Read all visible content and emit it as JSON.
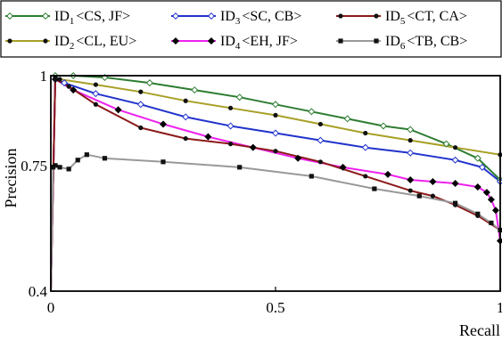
{
  "chart_data": {
    "type": "line",
    "title": "",
    "xlabel": "Recall",
    "ylabel": "Precision",
    "xlim": [
      0,
      1
    ],
    "ylim": [
      0.4,
      1
    ],
    "x_ticks": [
      {
        "value": 0,
        "label": "0"
      },
      {
        "value": 0.5,
        "label": "0.5"
      },
      {
        "value": 1,
        "label": "1"
      }
    ],
    "y_ticks": [
      {
        "value": 0.4,
        "label": "0.4"
      },
      {
        "value": 0.75,
        "label": "0.75"
      },
      {
        "value": 1,
        "label": "1"
      }
    ],
    "grid": false,
    "legend": "top",
    "series": [
      {
        "key": "s1",
        "sub": "1",
        "pair": "<CS, JF>",
        "color": "#2e7d32",
        "marker": "open-diamond",
        "x": [
          0,
          0.01,
          0.05,
          0.12,
          0.22,
          0.32,
          0.42,
          0.5,
          0.58,
          0.66,
          0.74,
          0.8,
          0.88,
          0.95,
          1.0
        ],
        "y": [
          0.4,
          1.0,
          1.0,
          0.995,
          0.98,
          0.96,
          0.94,
          0.92,
          0.9,
          0.88,
          0.86,
          0.85,
          0.81,
          0.77,
          0.71
        ]
      },
      {
        "key": "s2",
        "sub": "2",
        "pair": "<CL, EU>",
        "color": "#a8a027",
        "marker": "dot",
        "x": [
          0,
          0.01,
          0.02,
          0.1,
          0.2,
          0.3,
          0.4,
          0.5,
          0.6,
          0.7,
          0.8,
          0.9,
          1.0
        ],
        "y": [
          0.4,
          0.995,
          0.99,
          0.975,
          0.955,
          0.93,
          0.91,
          0.89,
          0.865,
          0.84,
          0.82,
          0.8,
          0.78
        ]
      },
      {
        "key": "s3",
        "sub": "3",
        "pair": "<SC, CB>",
        "color": "#2233cc",
        "marker": "open-diamond",
        "x": [
          0,
          0.01,
          0.03,
          0.1,
          0.2,
          0.3,
          0.4,
          0.5,
          0.6,
          0.7,
          0.8,
          0.9,
          0.96,
          1.0
        ],
        "y": [
          0.4,
          0.99,
          0.98,
          0.95,
          0.92,
          0.885,
          0.86,
          0.84,
          0.82,
          0.8,
          0.785,
          0.765,
          0.745,
          0.705
        ]
      },
      {
        "key": "s4",
        "sub": "4",
        "pair": "<EH, JF>",
        "color": "#ee22ee",
        "marker": "filled-diamond",
        "x": [
          0,
          0.01,
          0.05,
          0.15,
          0.25,
          0.35,
          0.45,
          0.55,
          0.65,
          0.75,
          0.8,
          0.85,
          0.9,
          0.95,
          0.97,
          0.98,
          0.99,
          1.0
        ],
        "y": [
          0.4,
          0.99,
          0.96,
          0.905,
          0.865,
          0.83,
          0.8,
          0.77,
          0.745,
          0.725,
          0.71,
          0.705,
          0.7,
          0.69,
          0.675,
          0.655,
          0.625,
          0.54
        ]
      },
      {
        "key": "s5",
        "sub": "5",
        "pair": "<CT, CA>",
        "color": "#8b1a1a",
        "marker": "dot",
        "x": [
          0,
          0.01,
          0.04,
          0.1,
          0.2,
          0.3,
          0.4,
          0.5,
          0.6,
          0.7,
          0.8,
          0.85,
          0.9,
          0.95,
          1.0
        ],
        "y": [
          0.4,
          0.99,
          0.97,
          0.92,
          0.855,
          0.825,
          0.81,
          0.79,
          0.76,
          0.72,
          0.68,
          0.665,
          0.64,
          0.61,
          0.57
        ]
      },
      {
        "key": "s6",
        "sub": "6",
        "pair": "<TB, CB>",
        "color": "#999999",
        "marker": "filled-square",
        "x": [
          0,
          0.005,
          0.01,
          0.02,
          0.04,
          0.06,
          0.08,
          0.12,
          0.25,
          0.42,
          0.58,
          0.72,
          0.82,
          0.9,
          0.95,
          0.98,
          1.0
        ],
        "y": [
          0.4,
          0.745,
          0.75,
          0.745,
          0.74,
          0.765,
          0.78,
          0.77,
          0.76,
          0.745,
          0.72,
          0.685,
          0.665,
          0.645,
          0.615,
          0.59,
          0.57
        ]
      }
    ]
  }
}
